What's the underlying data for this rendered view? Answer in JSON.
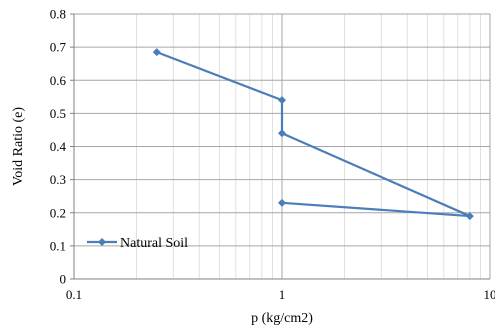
{
  "chart_data": {
    "type": "line",
    "title": "",
    "xlabel": "p (kg/cm2)",
    "ylabel": "Void Ratio (e)",
    "x_scale": "log",
    "xlim": [
      0.1,
      10
    ],
    "ylim": [
      0,
      0.8
    ],
    "x_ticks": [
      "0.1",
      "1",
      "10"
    ],
    "y_ticks": [
      "0",
      "0.1",
      "0.2",
      "0.3",
      "0.4",
      "0.5",
      "0.6",
      "0.7",
      "0.8"
    ],
    "grid": true,
    "legend_position": "bottom-left",
    "series": [
      {
        "name": "Natural Soil",
        "color": "#4a7ebb",
        "marker": "diamond",
        "points": [
          {
            "x": 0.25,
            "y": 0.685
          },
          {
            "x": 1,
            "y": 0.54
          },
          {
            "x": 1,
            "y": 0.44
          },
          {
            "x": 8,
            "y": 0.19
          },
          {
            "x": 1,
            "y": 0.23
          }
        ]
      }
    ]
  }
}
